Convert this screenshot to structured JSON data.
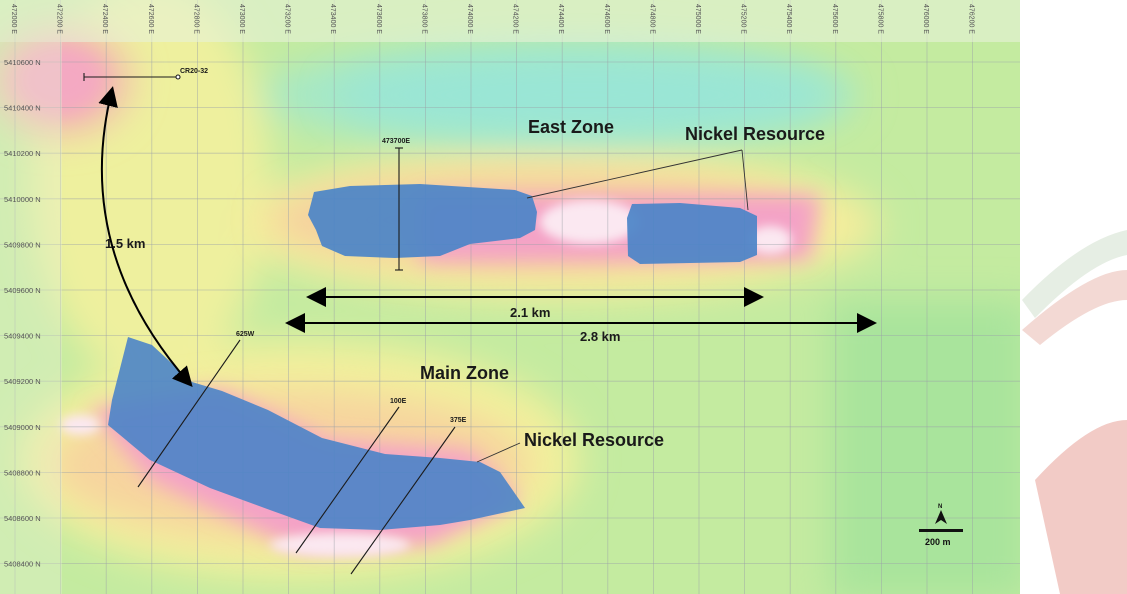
{
  "map": {
    "easting_ticks": [
      "472000 E",
      "472200 E",
      "472400 E",
      "472600 E",
      "472800 E",
      "473000 E",
      "473200 E",
      "473400 E",
      "473600 E",
      "473800 E",
      "474000 E",
      "474200 E",
      "474400 E",
      "474600 E",
      "474800 E",
      "475000 E",
      "475200 E",
      "475400 E",
      "475600 E",
      "475800 E",
      "476000 E",
      "476200 E"
    ],
    "northing_ticks": [
      "5410600 N",
      "5410400 N",
      "5410200 N",
      "5410000 N",
      "5409800 N",
      "5409600 N",
      "5409400 N",
      "5409200 N",
      "5409000 N",
      "5408800 N",
      "5408600 N",
      "5408400 N"
    ],
    "zones": {
      "east": "East Zone",
      "main": "Main Zone"
    },
    "resource_labels": {
      "east": "Nickel Resource",
      "main": "Nickel Resource"
    },
    "drill_holes": {
      "cr": "CR20-32",
      "e473700": "473700E",
      "w625": "625W",
      "e100": "100E",
      "e375": "375E"
    },
    "distances": {
      "d15": "1.5 km",
      "d21": "2.1 km",
      "d28": "2.8 km"
    },
    "north_arrow": "N",
    "scale_bar": "200 m",
    "colors": {
      "background": "#bfe89a",
      "magnetic_high": "#f5a8c8",
      "magnetic_peak": "#fbe6f0",
      "resource_fill": "#4a86c8",
      "teal_low": "#9fe8d8"
    }
  }
}
